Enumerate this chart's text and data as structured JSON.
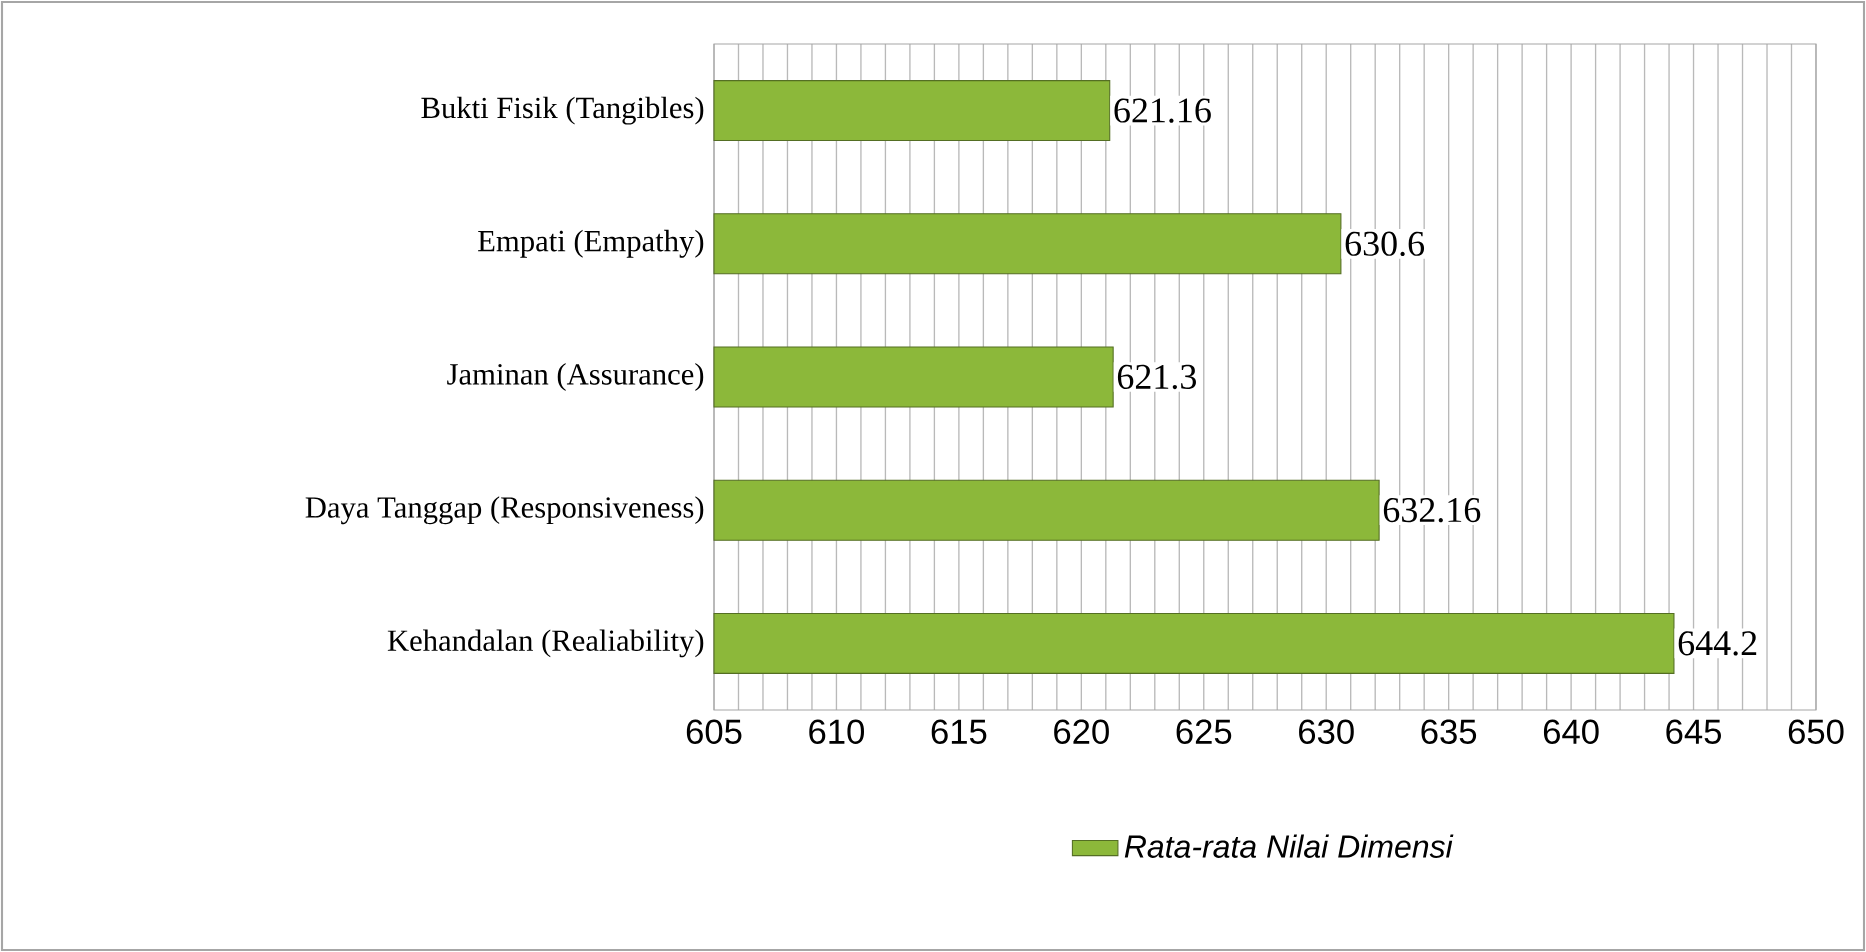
{
  "chart_data": {
    "type": "bar",
    "orientation": "horizontal",
    "categories": [
      "Bukti Fisik (Tangibles)",
      "Empati (Empathy)",
      "Jaminan (Assurance)",
      "Daya Tanggap (Responsiveness)",
      "Kehandalan (Realiability)"
    ],
    "series": [
      {
        "name": "Rata-rata Nilai Dimensi",
        "color": "#8cb83a",
        "values": [
          621.16,
          630.6,
          621.3,
          632.16,
          644.2
        ]
      }
    ],
    "xlim": [
      605,
      650
    ],
    "xticks": [
      605,
      610,
      615,
      620,
      625,
      630,
      635,
      640,
      645,
      650
    ],
    "grid": "x",
    "legend": "bottom",
    "data_labels": true
  }
}
